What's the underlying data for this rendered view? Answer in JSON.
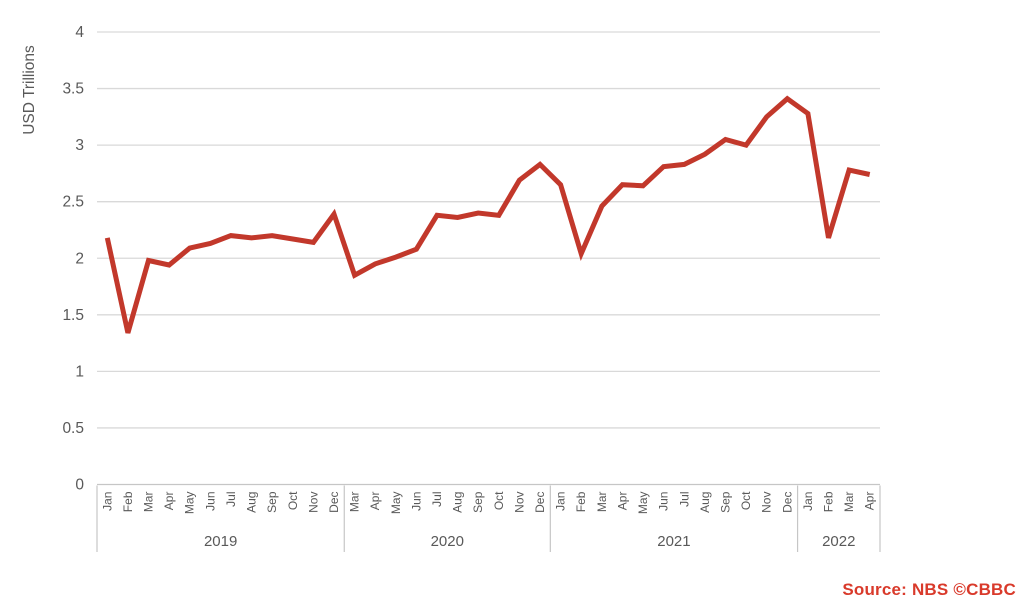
{
  "footer": {
    "source": "Source: NBS ©CBBC"
  },
  "chart_data": {
    "type": "line",
    "title": "",
    "xlabel": "",
    "ylabel": "USD Trillions",
    "ylim": [
      0,
      4
    ],
    "y_tick_labels": [
      "0",
      "0.5",
      "1",
      "1.5",
      "2",
      "2.5",
      "3",
      "3.5",
      "4"
    ],
    "grid": true,
    "legend_position": "none",
    "groups": [
      {
        "year": "2019",
        "months": [
          "Jan",
          "Feb",
          "Mar",
          "Apr",
          "May",
          "Jun",
          "Jul",
          "Aug",
          "Sep",
          "Oct",
          "Nov",
          "Dec"
        ],
        "values": [
          2.18,
          1.34,
          1.98,
          1.94,
          2.09,
          2.13,
          2.2,
          2.18,
          2.2,
          2.17,
          2.14,
          2.39
        ]
      },
      {
        "year": "2020",
        "months": [
          "Mar",
          "Apr",
          "May",
          "Jun",
          "Jul",
          "Aug",
          "Sep",
          "Oct",
          "Nov",
          "Dec"
        ],
        "values": [
          1.85,
          1.95,
          2.01,
          2.08,
          2.38,
          2.36,
          2.4,
          2.38,
          2.69,
          2.83
        ]
      },
      {
        "year": "2021",
        "months": [
          "Jan",
          "Feb",
          "Mar",
          "Apr",
          "May",
          "Jun",
          "Jul",
          "Aug",
          "Sep",
          "Oct",
          "Nov",
          "Dec"
        ],
        "values": [
          2.65,
          2.04,
          2.46,
          2.65,
          2.64,
          2.81,
          2.83,
          2.92,
          3.05,
          3.0,
          3.25,
          3.41
        ]
      },
      {
        "year": "2022",
        "months": [
          "Jan",
          "Feb",
          "Mar",
          "Apr"
        ],
        "values": [
          3.28,
          2.18,
          2.78,
          2.74
        ]
      }
    ],
    "colors": {
      "line": "#c2382b",
      "grid": "#d9d9d9",
      "axis": "#c6c6c6",
      "text": "#595959",
      "source_text": "#d93a2b"
    }
  }
}
